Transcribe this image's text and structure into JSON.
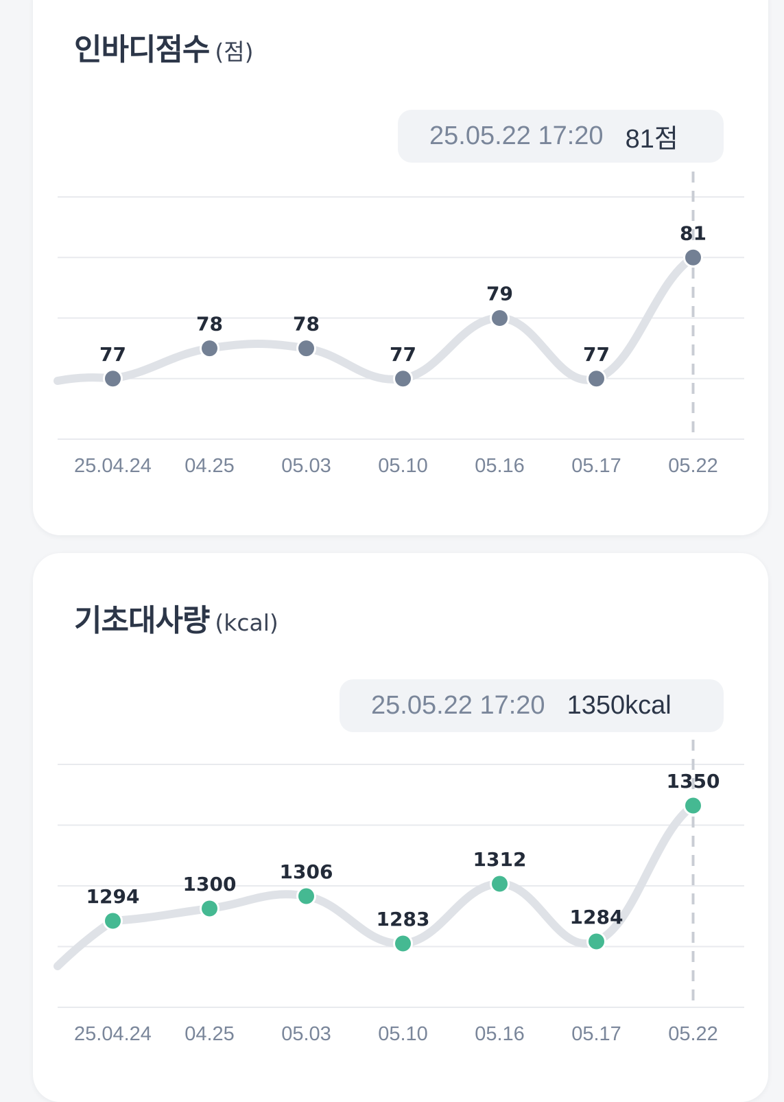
{
  "cards": [
    {
      "title": "인바디점수",
      "unit": "(점)",
      "tooltip": {
        "date": "25.05.22 17:20",
        "value": "81점"
      }
    },
    {
      "title": "기초대사량",
      "unit": "(kcal)",
      "tooltip": {
        "date": "25.05.22 17:20",
        "value": "1350kcal"
      }
    }
  ],
  "chart_data": [
    {
      "type": "line",
      "title": "인바디점수 (점)",
      "categories": [
        "25.04.24",
        "04.25",
        "05.03",
        "05.10",
        "05.16",
        "05.17",
        "05.22"
      ],
      "values": [
        77,
        78,
        78,
        77,
        79,
        77,
        81
      ],
      "selected_index": 6,
      "ylim": [
        75,
        83
      ],
      "grid": true,
      "colors": {
        "point": "#738094",
        "line": "#dfe2e7",
        "grid": "#e8eaee",
        "label": "#232b39",
        "tick": "#7a869a"
      }
    },
    {
      "type": "line",
      "title": "기초대사량 (kcal)",
      "categories": [
        "25.04.24",
        "04.25",
        "05.03",
        "05.10",
        "05.16",
        "05.17",
        "05.22"
      ],
      "values": [
        1294,
        1300,
        1306,
        1283,
        1312,
        1284,
        1350
      ],
      "selected_index": 6,
      "ylim": [
        1252,
        1370
      ],
      "grid": true,
      "colors": {
        "point": "#45b992",
        "line": "#dfe2e7",
        "grid": "#e8eaee",
        "label": "#232b39",
        "tick": "#7a869a"
      }
    }
  ]
}
